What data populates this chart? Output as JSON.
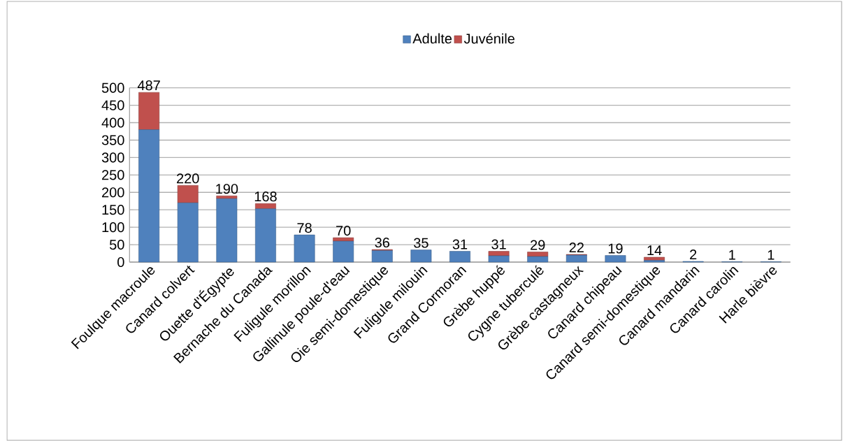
{
  "chart_data": {
    "type": "bar",
    "stacked": true,
    "categories": [
      "Foulque macroule",
      "Canard colvert",
      "Ouette d'Égypte",
      "Bernache du Canada",
      "Fuligule morillon",
      "Gallinule poule-d'eau",
      "Oie semi-domestique",
      "Fuligule milouin",
      "Grand Cormoran",
      "Grèbe huppé",
      "Cygne tuberculé",
      "Grèbe castagneux",
      "Canard chipeau",
      "Canard semi-domestique",
      "Canard mandarin",
      "Canard carolin",
      "Harle bièvre"
    ],
    "series": [
      {
        "name": "Adulte",
        "color": "#4f81bd",
        "values": [
          380,
          170,
          182,
          153,
          78,
          60,
          33,
          35,
          31,
          18,
          16,
          20,
          19,
          5,
          2,
          1,
          1
        ]
      },
      {
        "name": "Juvénile",
        "color": "#c0504d",
        "values": [
          107,
          50,
          8,
          15,
          0,
          10,
          3,
          0,
          0,
          13,
          13,
          2,
          0,
          9,
          0,
          0,
          0
        ]
      }
    ],
    "totals": [
      "487",
      "220",
      "190",
      "168",
      "78",
      "70",
      "36",
      "35",
      "31",
      "31",
      "29",
      "22",
      "19",
      "14",
      "2",
      "1",
      "1"
    ],
    "ylim": [
      0,
      500
    ],
    "yticks": [
      0,
      50,
      100,
      150,
      200,
      250,
      300,
      350,
      400,
      450,
      500
    ],
    "grid": "y",
    "legend": "top"
  }
}
